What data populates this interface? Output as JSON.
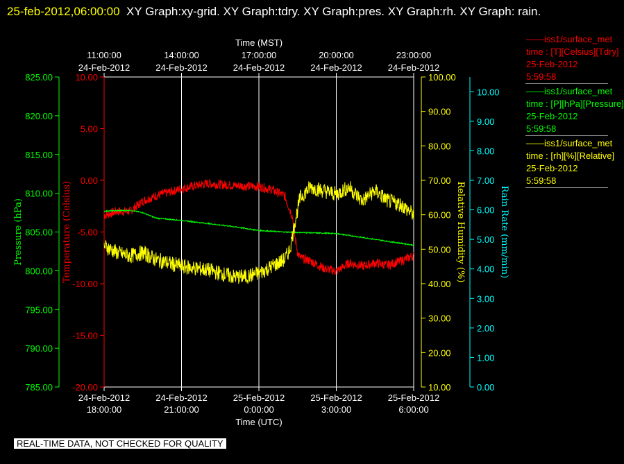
{
  "page": {
    "title_timestamp": "25-feb-2012,06:00:00",
    "title_rest": "XY Graph:xy-grid.  XY Graph:tdry.  XY Graph:pres.  XY Graph:rh.  XY Graph: rain.",
    "footer_note": "REAL-TIME DATA, NOT CHECKED FOR QUALITY"
  },
  "legend": [
    {
      "lines": [
        "——iss1/surface_met",
        "time : [T][Celsius][Tdry]",
        "25-Feb-2012",
        "5:59:58"
      ],
      "color": "#ff0000"
    },
    {
      "lines": [
        "——iss1/surface_met",
        "time : [P][hPa][Pressure]",
        "25-Feb-2012",
        "5:59:58"
      ],
      "color": "#00ff00"
    },
    {
      "lines": [
        "——iss1/surface_met",
        "time : [rh][%][Relative]",
        "25-Feb-2012",
        "5:59:58"
      ],
      "color": "#ffff00"
    }
  ],
  "colors": {
    "temperature": "#ff0000",
    "pressure": "#00ff00",
    "humidity": "#ffff00",
    "rain": "#00ffff",
    "grid": "#ffffff"
  },
  "chart_data": {
    "type": "line",
    "title": "",
    "x_top": {
      "label": "Time (MST)",
      "ticks": [
        {
          "line1": "11:00:00",
          "line2": "24-Feb-2012"
        },
        {
          "line1": "14:00:00",
          "line2": "24-Feb-2012"
        },
        {
          "line1": "17:00:00",
          "line2": "24-Feb-2012"
        },
        {
          "line1": "20:00:00",
          "line2": "24-Feb-2012"
        },
        {
          "line1": "23:00:00",
          "line2": "24-Feb-2012"
        }
      ]
    },
    "x_bottom": {
      "label": "Time (UTC)",
      "ticks": [
        {
          "line1": "24-Feb-2012",
          "line2": "18:00:00"
        },
        {
          "line1": "24-Feb-2012",
          "line2": "21:00:00"
        },
        {
          "line1": "25-Feb-2012",
          "line2": "0:00:00"
        },
        {
          "line1": "25-Feb-2012",
          "line2": "3:00:00"
        },
        {
          "line1": "25-Feb-2012",
          "line2": "6:00:00"
        }
      ]
    },
    "x_range_hours": [
      0,
      12
    ],
    "x_tick_hours": [
      0,
      3,
      6,
      9,
      12
    ],
    "axes": {
      "pressure": {
        "label": "Pressure (hPa)",
        "ylim": [
          785,
          825
        ],
        "ticks": [
          "785.00",
          "790.00",
          "795.00",
          "800.00",
          "805.00",
          "810.00",
          "815.00",
          "820.00",
          "825.00"
        ]
      },
      "temperature": {
        "label": "Temperature (Celsius)",
        "ylim": [
          -20,
          10
        ],
        "ticks": [
          "-20.00",
          "-15.00",
          "-10.00",
          "-5.00",
          "0.00",
          "5.00",
          "10.00"
        ]
      },
      "humidity": {
        "label": "Relative Humidity (%)",
        "ylim": [
          10,
          100
        ],
        "ticks": [
          "10.00",
          "20.00",
          "30.00",
          "40.00",
          "50.00",
          "60.00",
          "70.00",
          "80.00",
          "90.00",
          "100.00"
        ]
      },
      "rain": {
        "label": "Rain Rate (mm/min)",
        "ylim": [
          0,
          10.5
        ],
        "ticks": [
          "0.00",
          "1.00",
          "2.00",
          "3.00",
          "4.00",
          "5.00",
          "6.00",
          "7.00",
          "8.00",
          "9.00",
          "10.00"
        ]
      }
    },
    "series": [
      {
        "name": "Temperature (Celsius)",
        "axis": "temperature",
        "color": "#ff0000",
        "x": [
          0,
          0.5,
          1,
          1.5,
          2,
          3,
          4,
          5,
          6,
          6.5,
          7,
          7.3,
          7.4,
          7.5,
          7.6,
          8,
          8.5,
          9,
          9.5,
          10,
          10.5,
          11,
          11.5,
          12
        ],
        "y": [
          -3.4,
          -3.0,
          -3.0,
          -2.0,
          -1.5,
          -0.8,
          -0.3,
          -0.5,
          -0.6,
          -0.9,
          -1.5,
          -3.5,
          -5.5,
          -7.0,
          -7.5,
          -7.8,
          -8.5,
          -8.8,
          -8.0,
          -8.3,
          -8.0,
          -8.2,
          -7.8,
          -7.3
        ]
      },
      {
        "name": "Pressure (hPa)",
        "axis": "pressure",
        "color": "#00ff00",
        "x": [
          0,
          1,
          1.5,
          2,
          3,
          4,
          5,
          6,
          7,
          8,
          9,
          10,
          11,
          12
        ],
        "y": [
          807.7,
          807.8,
          807.5,
          806.8,
          806.5,
          806.1,
          805.7,
          805.2,
          805.0,
          804.9,
          804.8,
          804.3,
          803.8,
          803.3
        ]
      },
      {
        "name": "Relative Humidity (%)",
        "axis": "humidity",
        "color": "#ffff00",
        "x": [
          0,
          0.5,
          1,
          1.5,
          2,
          3,
          4,
          5,
          5.5,
          6,
          6.5,
          7,
          7.2,
          7.4,
          7.6,
          8,
          8.5,
          9,
          9.5,
          10,
          10.5,
          11,
          11.5,
          12
        ],
        "y": [
          51,
          49,
          48,
          49,
          47,
          45,
          44,
          42,
          42,
          43,
          45,
          47,
          50,
          58,
          65,
          68,
          67,
          66,
          68,
          64,
          67,
          64,
          63,
          60
        ]
      },
      {
        "name": "Rain Rate (mm/min)",
        "axis": "rain",
        "color": "#00ffff",
        "x": [],
        "y": []
      }
    ],
    "legend_position": "right"
  }
}
